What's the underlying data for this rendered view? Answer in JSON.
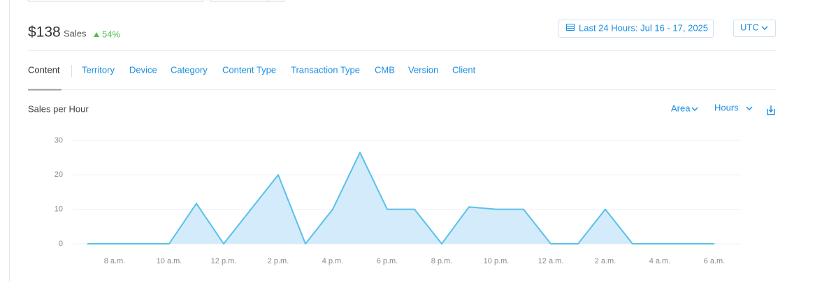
{
  "header": {
    "amount": "$138",
    "metric": "Sales",
    "change": "54%",
    "date_range": "Last 24 Hours: Jul 16 - 17, 2025",
    "timezone": "UTC"
  },
  "tabs": [
    "Content",
    "Territory",
    "Device",
    "Category",
    "Content Type",
    "Transaction Type",
    "CMB",
    "Version",
    "Client"
  ],
  "controls": {
    "chart_style": "Area",
    "interval": "Hours"
  },
  "chart_data": {
    "type": "area",
    "title": "Sales per Hour",
    "color": "#5ac0ec",
    "fill": "#d3ebfa",
    "grid": true,
    "categories": [
      null,
      "8 a.m.",
      null,
      "10 a.m.",
      null,
      "12 p.m.",
      null,
      "2 p.m.",
      null,
      "4 p.m.",
      null,
      "6 p.m.",
      null,
      "8 p.m.",
      null,
      "10 p.m.",
      null,
      "12 a.m.",
      null,
      "2 a.m.",
      null,
      "4 a.m.",
      null,
      "6 a.m."
    ],
    "values": [
      0,
      0,
      0,
      0,
      11.7,
      0,
      10,
      20,
      0,
      10,
      26.5,
      10,
      10,
      0,
      10.7,
      10,
      10,
      0,
      0,
      10,
      0,
      0,
      0,
      0
    ],
    "ylim": [
      0,
      30
    ],
    "yticks": [
      0,
      10,
      20,
      30
    ]
  }
}
